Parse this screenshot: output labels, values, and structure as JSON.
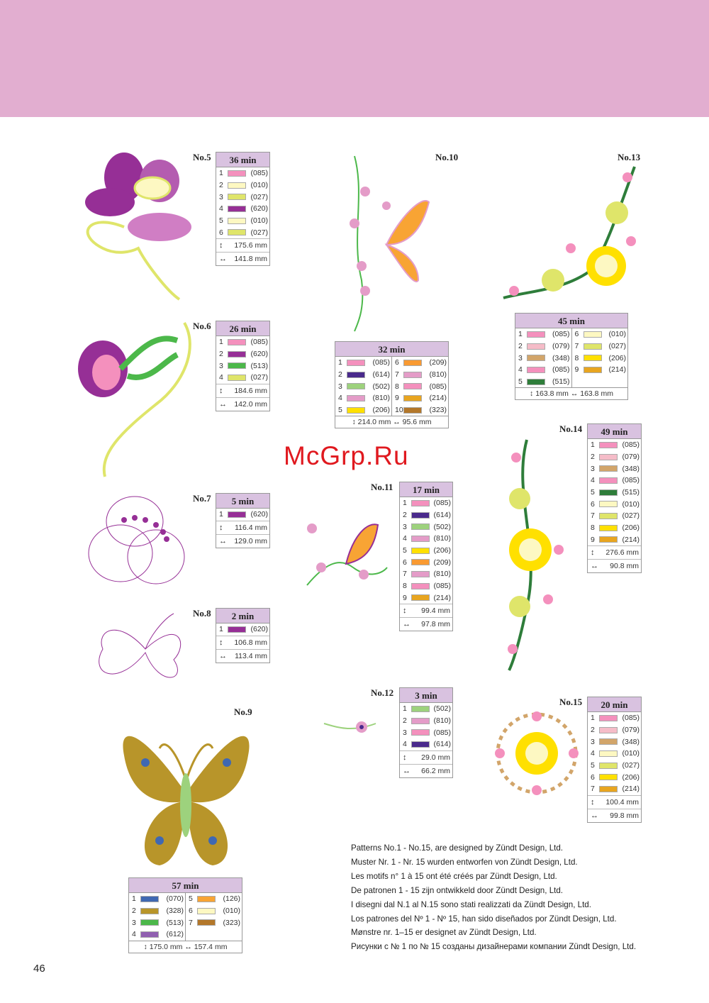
{
  "page_number": "46",
  "watermark": "McGrp.Ru",
  "icons": {
    "height": "↕",
    "width": "↔"
  },
  "patterns": [
    {
      "label": "No.5",
      "time": "36 min",
      "threads": [
        [
          "1",
          "(085)",
          "#f490bd"
        ],
        [
          "2",
          "(010)",
          "#fdf8c2"
        ],
        [
          "3",
          "(027)",
          "#dfe56a"
        ],
        [
          "4",
          "(620)",
          "#962f96"
        ],
        [
          "5",
          "(010)",
          "#fdf8c2"
        ],
        [
          "6",
          "(027)",
          "#dfe56a"
        ]
      ],
      "height": "175.6 mm",
      "width": "141.8 mm"
    },
    {
      "label": "No.6",
      "time": "26 min",
      "threads": [
        [
          "1",
          "(085)",
          "#f490bd"
        ],
        [
          "2",
          "(620)",
          "#962f96"
        ],
        [
          "3",
          "(513)",
          "#4cb84a"
        ],
        [
          "4",
          "(027)",
          "#dfe56a"
        ]
      ],
      "height": "184.6 mm",
      "width": "142.0 mm"
    },
    {
      "label": "No.7",
      "time": "5 min",
      "threads": [
        [
          "1",
          "(620)",
          "#962f96"
        ]
      ],
      "height": "116.4 mm",
      "width": "129.0 mm"
    },
    {
      "label": "No.8",
      "time": "2 min",
      "threads": [
        [
          "1",
          "(620)",
          "#962f96"
        ]
      ],
      "height": "106.8 mm",
      "width": "113.4 mm"
    },
    {
      "label": "No.9",
      "time": "57 min",
      "threads": [
        [
          "1",
          "(070)",
          "#3f68b2"
        ],
        [
          "2",
          "(328)",
          "#b8952a"
        ],
        [
          "3",
          "(513)",
          "#4cb84a"
        ],
        [
          "4",
          "(612)",
          "#9060b0"
        ],
        [
          "5",
          "(126)",
          "#f8a434"
        ],
        [
          "6",
          "(010)",
          "#fdf8c2"
        ],
        [
          "7",
          "(323)",
          "#b3772a"
        ]
      ],
      "height": "175.0 mm",
      "width": "157.4 mm"
    },
    {
      "label": "No.10",
      "time": "32 min",
      "threads": [
        [
          "1",
          "(085)",
          "#f490bd"
        ],
        [
          "2",
          "(614)",
          "#4a2a8c"
        ],
        [
          "3",
          "(502)",
          "#9dd27d"
        ],
        [
          "4",
          "(810)",
          "#e49cc8"
        ],
        [
          "5",
          "(206)",
          "#ffe000"
        ],
        [
          "6",
          "(209)",
          "#f99a32"
        ],
        [
          "7",
          "(810)",
          "#e49cc8"
        ],
        [
          "8",
          "(085)",
          "#f490bd"
        ],
        [
          "9",
          "(214)",
          "#e8a520"
        ],
        [
          "10",
          "(323)",
          "#b3772a"
        ]
      ],
      "height": "214.0 mm",
      "width": "95.6 mm"
    },
    {
      "label": "No.11",
      "time": "17 min",
      "threads": [
        [
          "1",
          "(085)",
          "#f490bd"
        ],
        [
          "2",
          "(614)",
          "#4a2a8c"
        ],
        [
          "3",
          "(502)",
          "#9dd27d"
        ],
        [
          "4",
          "(810)",
          "#e49cc8"
        ],
        [
          "5",
          "(206)",
          "#ffe000"
        ],
        [
          "6",
          "(209)",
          "#f99a32"
        ],
        [
          "7",
          "(810)",
          "#e49cc8"
        ],
        [
          "8",
          "(085)",
          "#f490bd"
        ],
        [
          "9",
          "(214)",
          "#e8a520"
        ]
      ],
      "height": "99.4 mm",
      "width": "97.8 mm"
    },
    {
      "label": "No.12",
      "time": "3 min",
      "threads": [
        [
          "1",
          "(502)",
          "#9dd27d"
        ],
        [
          "2",
          "(810)",
          "#e49cc8"
        ],
        [
          "3",
          "(085)",
          "#f490bd"
        ],
        [
          "4",
          "(614)",
          "#4a2a8c"
        ]
      ],
      "height": "29.0 mm",
      "width": "66.2 mm"
    },
    {
      "label": "No.13",
      "time": "45 min",
      "threads": [
        [
          "1",
          "(085)",
          "#f490bd"
        ],
        [
          "2",
          "(079)",
          "#f5bcc8"
        ],
        [
          "3",
          "(348)",
          "#d2a56a"
        ],
        [
          "4",
          "(085)",
          "#f490bd"
        ],
        [
          "5",
          "(515)",
          "#2e7d3a"
        ],
        [
          "6",
          "(010)",
          "#fdf8c2"
        ],
        [
          "7",
          "(027)",
          "#dfe56a"
        ],
        [
          "8",
          "(206)",
          "#ffe000"
        ],
        [
          "9",
          "(214)",
          "#e8a520"
        ]
      ],
      "height": "163.8 mm",
      "width": "163.8 mm"
    },
    {
      "label": "No.14",
      "time": "49 min",
      "threads": [
        [
          "1",
          "(085)",
          "#f490bd"
        ],
        [
          "2",
          "(079)",
          "#f5bcc8"
        ],
        [
          "3",
          "(348)",
          "#d2a56a"
        ],
        [
          "4",
          "(085)",
          "#f490bd"
        ],
        [
          "5",
          "(515)",
          "#2e7d3a"
        ],
        [
          "6",
          "(010)",
          "#fdf8c2"
        ],
        [
          "7",
          "(027)",
          "#dfe56a"
        ],
        [
          "8",
          "(206)",
          "#ffe000"
        ],
        [
          "9",
          "(214)",
          "#e8a520"
        ]
      ],
      "height": "276.6 mm",
      "width": "90.8 mm"
    },
    {
      "label": "No.15",
      "time": "20 min",
      "threads": [
        [
          "1",
          "(085)",
          "#f490bd"
        ],
        [
          "2",
          "(079)",
          "#f5bcc8"
        ],
        [
          "3",
          "(348)",
          "#d2a56a"
        ],
        [
          "4",
          "(010)",
          "#fdf8c2"
        ],
        [
          "5",
          "(027)",
          "#dfe56a"
        ],
        [
          "6",
          "(206)",
          "#ffe000"
        ],
        [
          "7",
          "(214)",
          "#e8a520"
        ]
      ],
      "height": "100.4 mm",
      "width": "99.8 mm"
    }
  ],
  "credits": [
    "Patterns No.1 - No.15, are designed by Zündt Design, Ltd.",
    "Muster Nr. 1 - Nr. 15 wurden entworfen von Zündt Design, Ltd.",
    "Les motifs n° 1 à 15 ont été créés par Zündt Design, Ltd.",
    "De patronen 1 - 15 zijn ontwikkeld door Zündt Design, Ltd.",
    "I disegni dal N.1 al N.15 sono stati realizzati da Zündt Design, Ltd.",
    "Los patrones del Nº 1 - Nº 15, han sido diseñados por Zündt Design, Ltd.",
    "Mønstre nr. 1–15 er designet av Zündt Design, Ltd.",
    "Рисунки с № 1 по № 15 созданы дизайнерами компании Zündt Design, Ltd."
  ]
}
